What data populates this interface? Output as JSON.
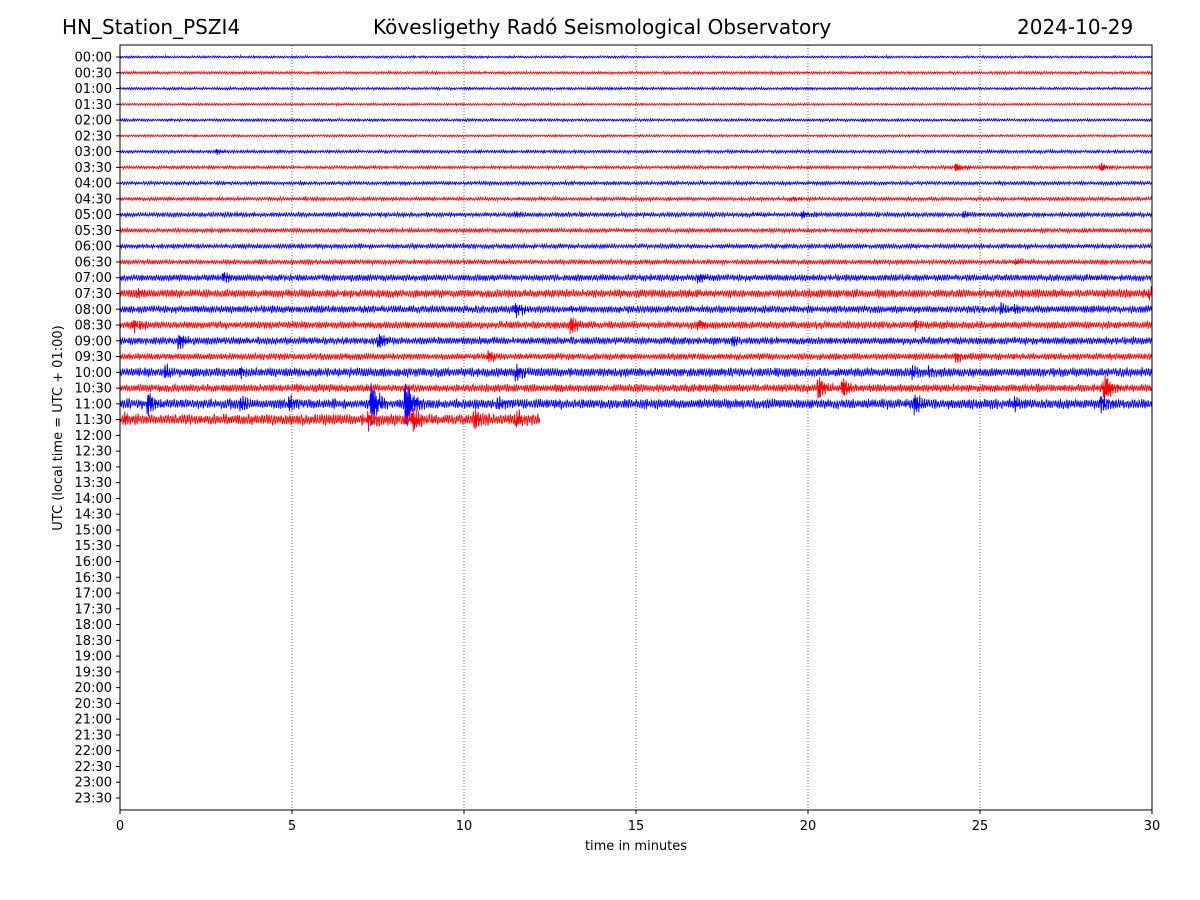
{
  "chart_data": {
    "type": "line",
    "title_left": "HN_Station_PSZI4",
    "title_center": "Kövesligethy Radó Seismological Observatory",
    "title_right": "2024-10-29",
    "xlabel": "time in minutes",
    "ylabel": "UTC (local time = UTC + 01:00)",
    "xlim": [
      0,
      30
    ],
    "xticks": [
      "0",
      "5",
      "10",
      "15",
      "20",
      "25",
      "30"
    ],
    "yticks": [
      "00:00",
      "00:30",
      "01:00",
      "01:30",
      "02:00",
      "02:30",
      "03:00",
      "03:30",
      "04:00",
      "04:30",
      "05:00",
      "05:30",
      "06:00",
      "06:30",
      "07:00",
      "07:30",
      "08:00",
      "08:30",
      "09:00",
      "09:30",
      "10:00",
      "10:30",
      "11:00",
      "11:30",
      "12:00",
      "12:30",
      "13:00",
      "13:30",
      "14:00",
      "14:30",
      "15:00",
      "15:30",
      "16:00",
      "16:30",
      "17:00",
      "17:30",
      "18:00",
      "18:30",
      "19:00",
      "19:30",
      "20:00",
      "20:30",
      "21:00",
      "21:30",
      "22:00",
      "22:30",
      "23:00",
      "23:30"
    ],
    "grid": "vertical dotted at x ticks",
    "colors": [
      "#0000ff",
      "#ff0000"
    ],
    "amplitude_unit": "fraction of row spacing",
    "traces": [
      {
        "row": "00:00",
        "noise": 0.05,
        "end": 30,
        "events": []
      },
      {
        "row": "00:30",
        "noise": 0.06,
        "end": 30,
        "events": []
      },
      {
        "row": "01:00",
        "noise": 0.06,
        "end": 30,
        "events": []
      },
      {
        "row": "01:30",
        "noise": 0.05,
        "end": 30,
        "events": []
      },
      {
        "row": "02:00",
        "noise": 0.06,
        "end": 30,
        "events": []
      },
      {
        "row": "02:30",
        "noise": 0.05,
        "end": 30,
        "events": []
      },
      {
        "row": "03:00",
        "noise": 0.07,
        "end": 30,
        "events": [
          [
            2.8,
            0.15
          ]
        ]
      },
      {
        "row": "03:30",
        "noise": 0.07,
        "end": 30,
        "events": [
          [
            24.3,
            0.3
          ],
          [
            28.5,
            0.25
          ]
        ]
      },
      {
        "row": "04:00",
        "noise": 0.08,
        "end": 30,
        "events": []
      },
      {
        "row": "04:30",
        "noise": 0.08,
        "end": 30,
        "events": [
          [
            19.5,
            0.15
          ]
        ]
      },
      {
        "row": "05:00",
        "noise": 0.1,
        "end": 30,
        "events": [
          [
            11.5,
            0.2
          ],
          [
            19.8,
            0.25
          ],
          [
            24.5,
            0.2
          ]
        ]
      },
      {
        "row": "05:30",
        "noise": 0.09,
        "end": 30,
        "events": []
      },
      {
        "row": "06:00",
        "noise": 0.1,
        "end": 30,
        "events": []
      },
      {
        "row": "06:30",
        "noise": 0.1,
        "end": 30,
        "events": [
          [
            26,
            0.25
          ]
        ]
      },
      {
        "row": "07:00",
        "noise": 0.14,
        "end": 30,
        "events": [
          [
            3,
            0.35
          ],
          [
            16.8,
            0.35
          ]
        ]
      },
      {
        "row": "07:30",
        "noise": 0.18,
        "end": 30,
        "events": [
          [
            0.5,
            0.35
          ],
          [
            29.9,
            0.4
          ]
        ]
      },
      {
        "row": "08:00",
        "noise": 0.16,
        "end": 30,
        "events": [
          [
            11.5,
            0.45
          ],
          [
            25.6,
            0.35
          ],
          [
            26,
            0.3
          ]
        ]
      },
      {
        "row": "08:30",
        "noise": 0.16,
        "end": 30,
        "events": [
          [
            0.4,
            0.4
          ],
          [
            13.1,
            0.55
          ],
          [
            16.8,
            0.35
          ],
          [
            23.1,
            0.3
          ]
        ]
      },
      {
        "row": "09:00",
        "noise": 0.16,
        "end": 30,
        "events": [
          [
            1.7,
            0.5
          ],
          [
            7.5,
            0.55
          ],
          [
            17.8,
            0.3
          ]
        ]
      },
      {
        "row": "09:30",
        "noise": 0.14,
        "end": 30,
        "events": [
          [
            10.7,
            0.35
          ],
          [
            24.3,
            0.35
          ]
        ]
      },
      {
        "row": "10:00",
        "noise": 0.2,
        "end": 30,
        "events": [
          [
            1.3,
            0.4
          ],
          [
            3.5,
            0.35
          ],
          [
            11.5,
            0.45
          ],
          [
            23,
            0.4
          ],
          [
            23.5,
            0.35
          ]
        ]
      },
      {
        "row": "10:30",
        "noise": 0.17,
        "end": 30,
        "events": [
          [
            20.3,
            0.8
          ],
          [
            21,
            0.6
          ],
          [
            28.6,
            1.0
          ]
        ]
      },
      {
        "row": "11:00",
        "noise": 0.22,
        "end": 30,
        "events": [
          [
            0.8,
            0.8
          ],
          [
            3.5,
            0.5
          ],
          [
            4.9,
            0.5
          ],
          [
            7.3,
            1.4
          ],
          [
            8.3,
            1.7
          ],
          [
            11,
            0.5
          ],
          [
            23.1,
            0.65
          ],
          [
            26,
            0.45
          ],
          [
            28.5,
            0.5
          ]
        ]
      },
      {
        "row": "11:30",
        "noise": 0.24,
        "end": 12.2,
        "events": [
          [
            0.1,
            0.4
          ],
          [
            7.2,
            0.6
          ],
          [
            8.5,
            0.75
          ],
          [
            10.3,
            0.65
          ],
          [
            11.5,
            0.5
          ]
        ]
      }
    ]
  }
}
